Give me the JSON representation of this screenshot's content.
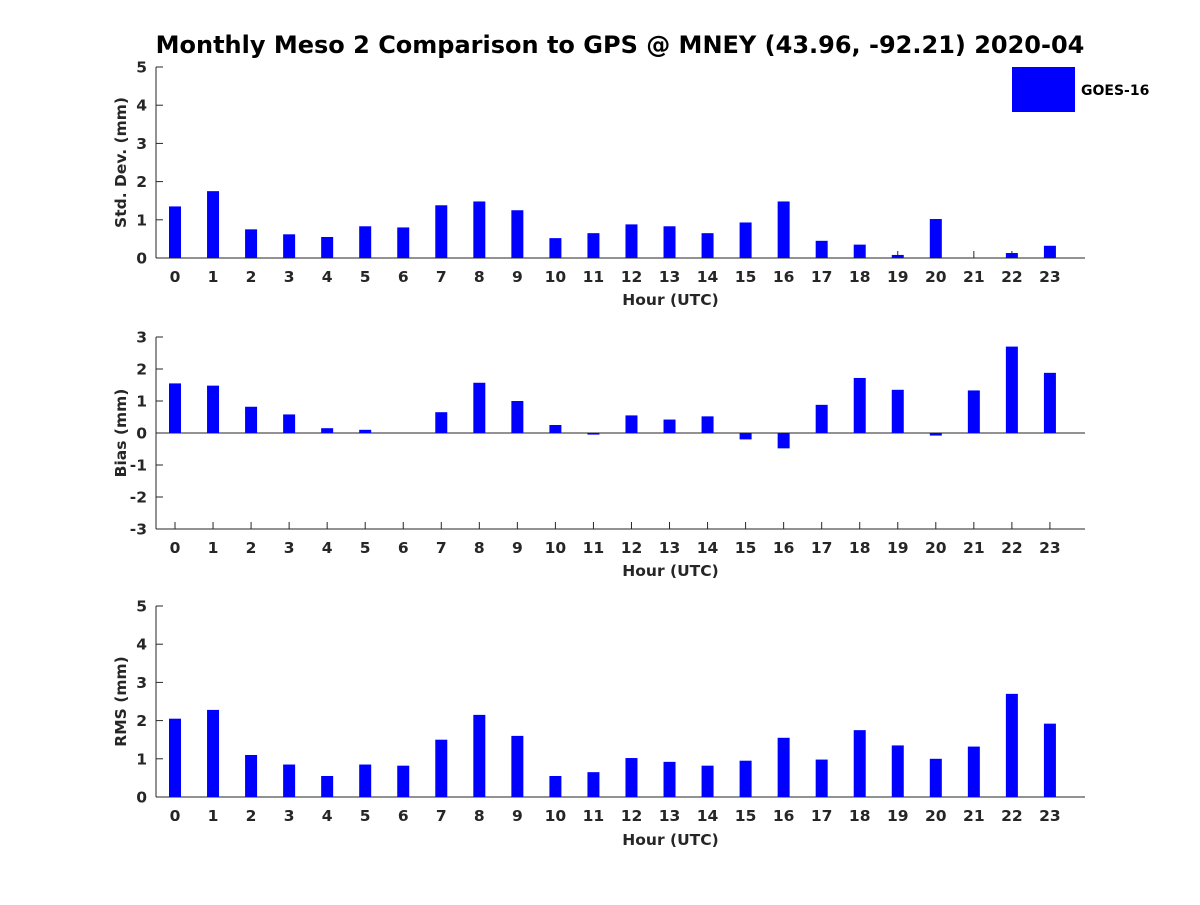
{
  "title": "Monthly Meso 2 Comparison to GPS @ MNEY (43.96, -92.21) 2020-04",
  "legend": {
    "label": "GOES-16",
    "color": "#0000ff"
  },
  "chart_data": [
    {
      "type": "bar",
      "name": "std-dev",
      "xlabel": "Hour (UTC)",
      "ylabel": "Std. Dev. (mm)",
      "ylim": [
        0,
        5
      ],
      "yticks": [
        0,
        1,
        2,
        3,
        4,
        5
      ],
      "categories": [
        "0",
        "1",
        "2",
        "3",
        "4",
        "5",
        "6",
        "7",
        "8",
        "9",
        "10",
        "11",
        "12",
        "13",
        "14",
        "15",
        "16",
        "17",
        "18",
        "19",
        "20",
        "21",
        "22",
        "23"
      ],
      "series": [
        {
          "name": "GOES-16",
          "values": [
            1.35,
            1.75,
            0.75,
            0.62,
            0.55,
            0.83,
            0.8,
            1.38,
            1.48,
            1.25,
            0.52,
            0.65,
            0.88,
            0.83,
            0.65,
            0.93,
            1.48,
            0.45,
            0.35,
            0.08,
            1.02,
            0.0,
            0.13,
            0.32
          ]
        }
      ]
    },
    {
      "type": "bar",
      "name": "bias",
      "xlabel": "Hour (UTC)",
      "ylabel": "Bias (mm)",
      "ylim": [
        -3,
        3
      ],
      "yticks": [
        -3,
        -2,
        -1,
        0,
        1,
        2,
        3
      ],
      "zero_line": true,
      "categories": [
        "0",
        "1",
        "2",
        "3",
        "4",
        "5",
        "6",
        "7",
        "8",
        "9",
        "10",
        "11",
        "12",
        "13",
        "14",
        "15",
        "16",
        "17",
        "18",
        "19",
        "20",
        "21",
        "22",
        "23"
      ],
      "series": [
        {
          "name": "GOES-16",
          "values": [
            1.55,
            1.48,
            0.82,
            0.58,
            0.15,
            0.1,
            0.0,
            0.65,
            1.57,
            1.0,
            0.25,
            -0.05,
            0.55,
            0.42,
            0.52,
            -0.2,
            -0.48,
            0.88,
            1.72,
            1.35,
            -0.08,
            1.33,
            2.7,
            1.88
          ]
        }
      ]
    },
    {
      "type": "bar",
      "name": "rms",
      "xlabel": "Hour (UTC)",
      "ylabel": "RMS (mm)",
      "ylim": [
        0,
        5
      ],
      "yticks": [
        0,
        1,
        2,
        3,
        4,
        5
      ],
      "categories": [
        "0",
        "1",
        "2",
        "3",
        "4",
        "5",
        "6",
        "7",
        "8",
        "9",
        "10",
        "11",
        "12",
        "13",
        "14",
        "15",
        "16",
        "17",
        "18",
        "19",
        "20",
        "21",
        "22",
        "23"
      ],
      "series": [
        {
          "name": "GOES-16",
          "values": [
            2.05,
            2.28,
            1.1,
            0.85,
            0.55,
            0.85,
            0.82,
            1.5,
            2.15,
            1.6,
            0.55,
            0.65,
            1.02,
            0.92,
            0.82,
            0.95,
            1.55,
            0.98,
            1.75,
            1.35,
            1.0,
            1.32,
            2.7,
            1.92
          ]
        }
      ]
    }
  ]
}
